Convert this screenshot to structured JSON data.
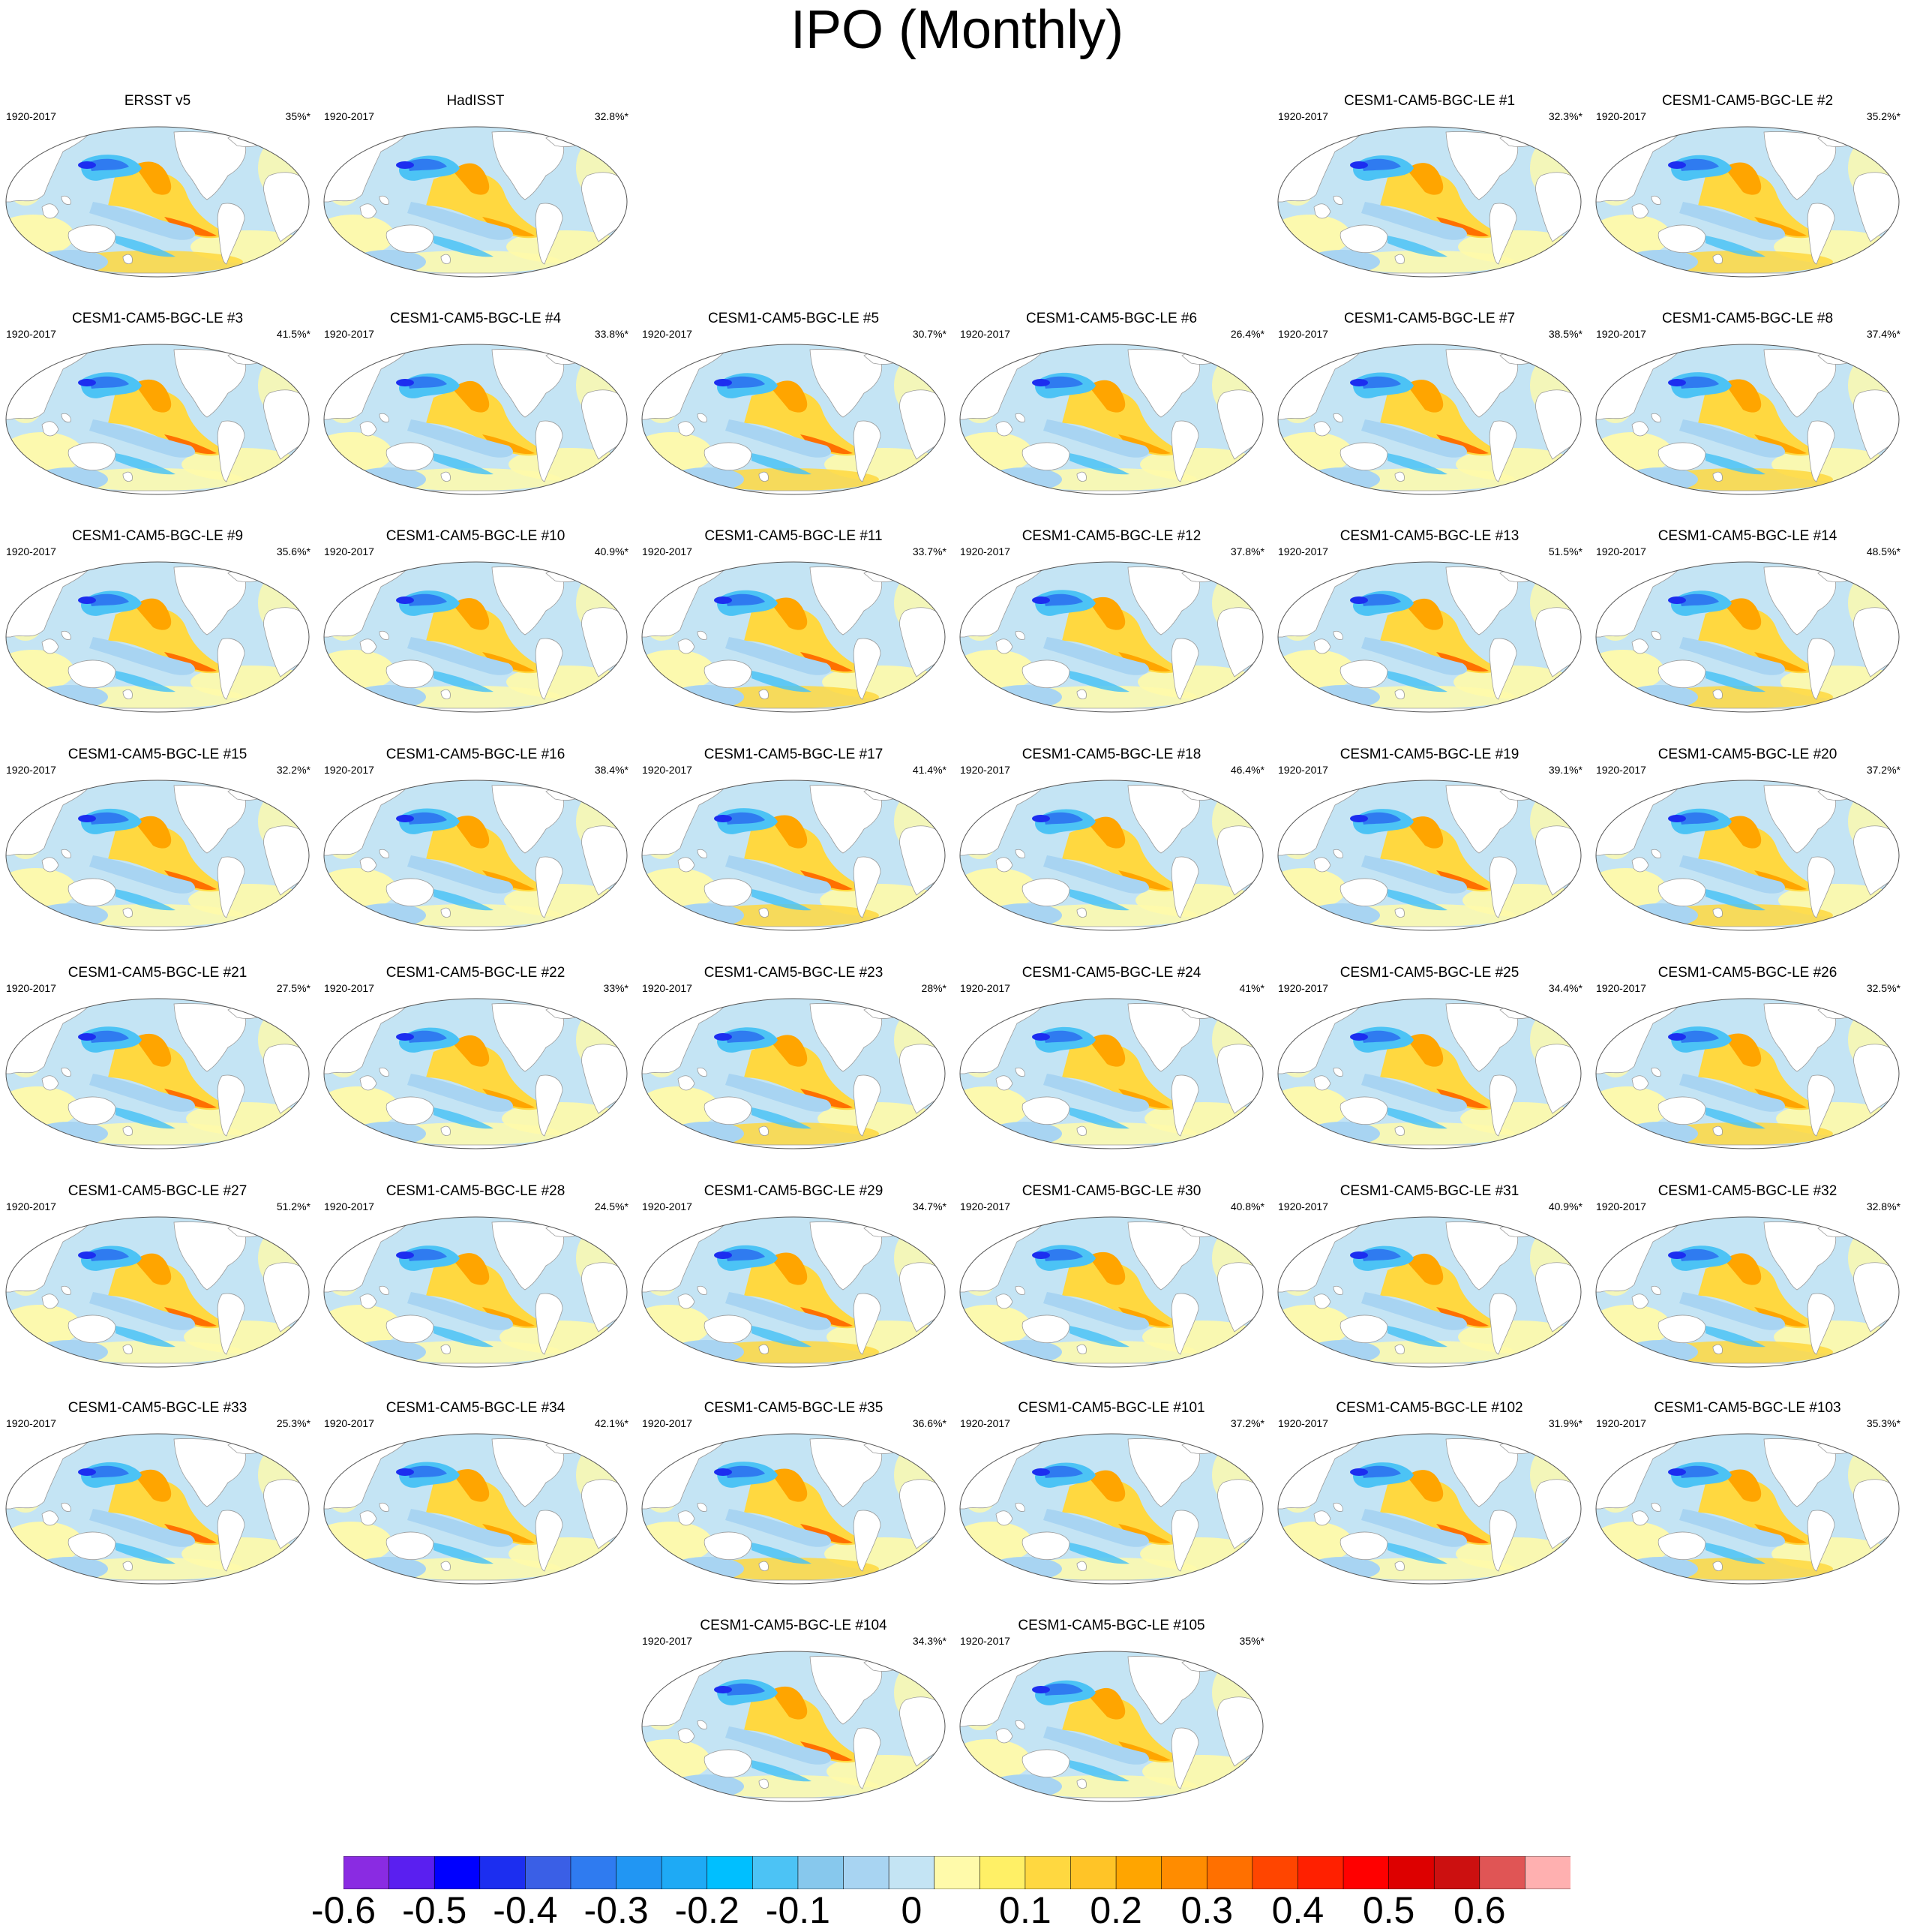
{
  "title": "IPO (Monthly)",
  "period": "1920-2017",
  "panels": [
    {
      "name": "ERSST v5",
      "pct": "35%*",
      "row": 0,
      "col": 0
    },
    {
      "name": "HadISST",
      "pct": "32.8%*",
      "row": 0,
      "col": 1
    },
    {
      "name": "CESM1-CAM5-BGC-LE #1",
      "pct": "32.3%*",
      "row": 0,
      "col": 4
    },
    {
      "name": "CESM1-CAM5-BGC-LE #2",
      "pct": "35.2%*",
      "row": 0,
      "col": 5
    },
    {
      "name": "CESM1-CAM5-BGC-LE #3",
      "pct": "41.5%*",
      "row": 1,
      "col": 0
    },
    {
      "name": "CESM1-CAM5-BGC-LE #4",
      "pct": "33.8%*",
      "row": 1,
      "col": 1
    },
    {
      "name": "CESM1-CAM5-BGC-LE #5",
      "pct": "30.7%*",
      "row": 1,
      "col": 2
    },
    {
      "name": "CESM1-CAM5-BGC-LE #6",
      "pct": "26.4%*",
      "row": 1,
      "col": 3
    },
    {
      "name": "CESM1-CAM5-BGC-LE #7",
      "pct": "38.5%*",
      "row": 1,
      "col": 4
    },
    {
      "name": "CESM1-CAM5-BGC-LE #8",
      "pct": "37.4%*",
      "row": 1,
      "col": 5
    },
    {
      "name": "CESM1-CAM5-BGC-LE #9",
      "pct": "35.6%*",
      "row": 2,
      "col": 0
    },
    {
      "name": "CESM1-CAM5-BGC-LE #10",
      "pct": "40.9%*",
      "row": 2,
      "col": 1
    },
    {
      "name": "CESM1-CAM5-BGC-LE #11",
      "pct": "33.7%*",
      "row": 2,
      "col": 2
    },
    {
      "name": "CESM1-CAM5-BGC-LE #12",
      "pct": "37.8%*",
      "row": 2,
      "col": 3
    },
    {
      "name": "CESM1-CAM5-BGC-LE #13",
      "pct": "51.5%*",
      "row": 2,
      "col": 4
    },
    {
      "name": "CESM1-CAM5-BGC-LE #14",
      "pct": "48.5%*",
      "row": 2,
      "col": 5
    },
    {
      "name": "CESM1-CAM5-BGC-LE #15",
      "pct": "32.2%*",
      "row": 3,
      "col": 0
    },
    {
      "name": "CESM1-CAM5-BGC-LE #16",
      "pct": "38.4%*",
      "row": 3,
      "col": 1
    },
    {
      "name": "CESM1-CAM5-BGC-LE #17",
      "pct": "41.4%*",
      "row": 3,
      "col": 2
    },
    {
      "name": "CESM1-CAM5-BGC-LE #18",
      "pct": "46.4%*",
      "row": 3,
      "col": 3
    },
    {
      "name": "CESM1-CAM5-BGC-LE #19",
      "pct": "39.1%*",
      "row": 3,
      "col": 4
    },
    {
      "name": "CESM1-CAM5-BGC-LE #20",
      "pct": "37.2%*",
      "row": 3,
      "col": 5
    },
    {
      "name": "CESM1-CAM5-BGC-LE #21",
      "pct": "27.5%*",
      "row": 4,
      "col": 0
    },
    {
      "name": "CESM1-CAM5-BGC-LE #22",
      "pct": "33%*",
      "row": 4,
      "col": 1
    },
    {
      "name": "CESM1-CAM5-BGC-LE #23",
      "pct": "28%*",
      "row": 4,
      "col": 2
    },
    {
      "name": "CESM1-CAM5-BGC-LE #24",
      "pct": "41%*",
      "row": 4,
      "col": 3
    },
    {
      "name": "CESM1-CAM5-BGC-LE #25",
      "pct": "34.4%*",
      "row": 4,
      "col": 4
    },
    {
      "name": "CESM1-CAM5-BGC-LE #26",
      "pct": "32.5%*",
      "row": 4,
      "col": 5
    },
    {
      "name": "CESM1-CAM5-BGC-LE #27",
      "pct": "51.2%*",
      "row": 5,
      "col": 0
    },
    {
      "name": "CESM1-CAM5-BGC-LE #28",
      "pct": "24.5%*",
      "row": 5,
      "col": 1
    },
    {
      "name": "CESM1-CAM5-BGC-LE #29",
      "pct": "34.7%*",
      "row": 5,
      "col": 2
    },
    {
      "name": "CESM1-CAM5-BGC-LE #30",
      "pct": "40.8%*",
      "row": 5,
      "col": 3
    },
    {
      "name": "CESM1-CAM5-BGC-LE #31",
      "pct": "40.9%*",
      "row": 5,
      "col": 4
    },
    {
      "name": "CESM1-CAM5-BGC-LE #32",
      "pct": "32.8%*",
      "row": 5,
      "col": 5
    },
    {
      "name": "CESM1-CAM5-BGC-LE #33",
      "pct": "25.3%*",
      "row": 6,
      "col": 0
    },
    {
      "name": "CESM1-CAM5-BGC-LE #34",
      "pct": "42.1%*",
      "row": 6,
      "col": 1
    },
    {
      "name": "CESM1-CAM5-BGC-LE #35",
      "pct": "36.6%*",
      "row": 6,
      "col": 2
    },
    {
      "name": "CESM1-CAM5-BGC-LE #101",
      "pct": "37.2%*",
      "row": 6,
      "col": 3
    },
    {
      "name": "CESM1-CAM5-BGC-LE #102",
      "pct": "31.9%*",
      "row": 6,
      "col": 4
    },
    {
      "name": "CESM1-CAM5-BGC-LE #103",
      "pct": "35.3%*",
      "row": 6,
      "col": 5
    },
    {
      "name": "CESM1-CAM5-BGC-LE #104",
      "pct": "34.3%*",
      "row": 7,
      "col": 2
    },
    {
      "name": "CESM1-CAM5-BGC-LE #105",
      "pct": "35%*",
      "row": 7,
      "col": 3
    }
  ],
  "colorbar": {
    "colors": [
      "#8a2be2",
      "#5a1ff0",
      "#0000ff",
      "#1c2ef0",
      "#3a5fe6",
      "#2f7bf0",
      "#2196f3",
      "#1eaaf5",
      "#00bfff",
      "#4cc3f5",
      "#87c8ed",
      "#a8d4f2",
      "#c4e4f4",
      "#fffaaa",
      "#fff066",
      "#ffd840",
      "#ffc427",
      "#ffa500",
      "#ff8c00",
      "#ff7000",
      "#ff4500",
      "#ff2000",
      "#ff0000",
      "#dd0000",
      "#cc1010",
      "#e05555",
      "#ffb0b0"
    ],
    "labels": [
      "-0.6",
      "-0.5",
      "-0.4",
      "-0.3",
      "-0.2",
      "-0.1",
      "0",
      "0.1",
      "0.2",
      "0.3",
      "0.4",
      "0.5",
      "0.6"
    ],
    "label_values": [
      -0.6,
      -0.5,
      -0.4,
      -0.3,
      -0.2,
      -0.1,
      0,
      0.1,
      0.2,
      0.3,
      0.4,
      0.5,
      0.6
    ]
  },
  "map_palette": {
    "ocean_blue": "#c4e4f4",
    "light_blue": "#a8d4f2",
    "mid_blue": "#4cc3f5",
    "deep_blue": "#2f7bf0",
    "dark_blue": "#1c2ef0",
    "yellow": "#fffaaa",
    "gold": "#ffd840",
    "orange": "#ffa500",
    "dark_orange": "#ff7000",
    "land": "#ffffff"
  }
}
